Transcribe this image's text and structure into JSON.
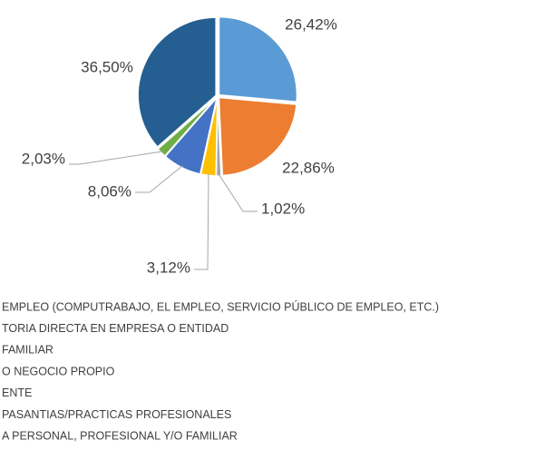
{
  "chart_data": {
    "type": "pie",
    "categories": [
      "EMPLEO (COMPUTRABAJO, EL EMPLEO, SERVICIO PÚBLICO DE EMPLEO, ETC.)",
      "TORIA DIRECTA EN EMPRESA O ENTIDAD",
      "FAMILIAR",
      "O NEGOCIO PROPIO",
      "ENTE",
      "PASANTIAS/PRACTICAS PROFESIONALES",
      "A PERSONAL, PROFESIONAL Y/O FAMILIAR"
    ],
    "values": [
      26.42,
      22.86,
      1.02,
      3.12,
      8.06,
      2.03,
      36.5
    ],
    "value_labels": [
      "26,42%",
      "22,86%",
      "1,02%",
      "3,12%",
      "8,06%",
      "2,03%",
      "36,50%"
    ],
    "colors": [
      "#5b9bd5",
      "#ed7d31",
      "#a5a5a5",
      "#ffc000",
      "#4472c4",
      "#70ad47",
      "#255e91"
    ],
    "legend": "bottom"
  }
}
